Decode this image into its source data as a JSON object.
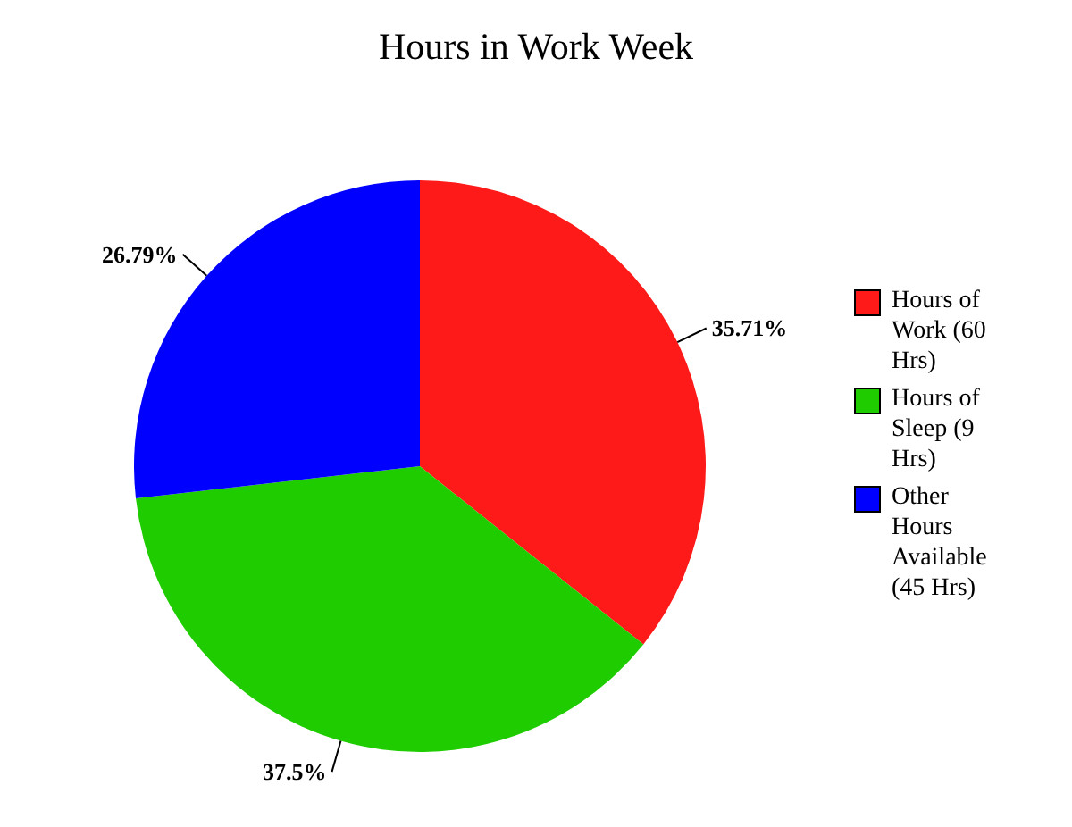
{
  "chart_data": {
    "type": "pie",
    "title": "Hours in Work Week",
    "categories": [
      "Hours of Work (60 Hrs)",
      "Hours of Sleep (9 Hrs)",
      "Other Hours Available (45 Hrs)"
    ],
    "values": [
      35.71,
      37.5,
      26.79
    ],
    "colors": [
      "#ff1a1a",
      "#1fcc00",
      "#0000ff"
    ],
    "value_labels": [
      "35.71%",
      "37.5%",
      "26.79%"
    ],
    "legend": "right"
  }
}
